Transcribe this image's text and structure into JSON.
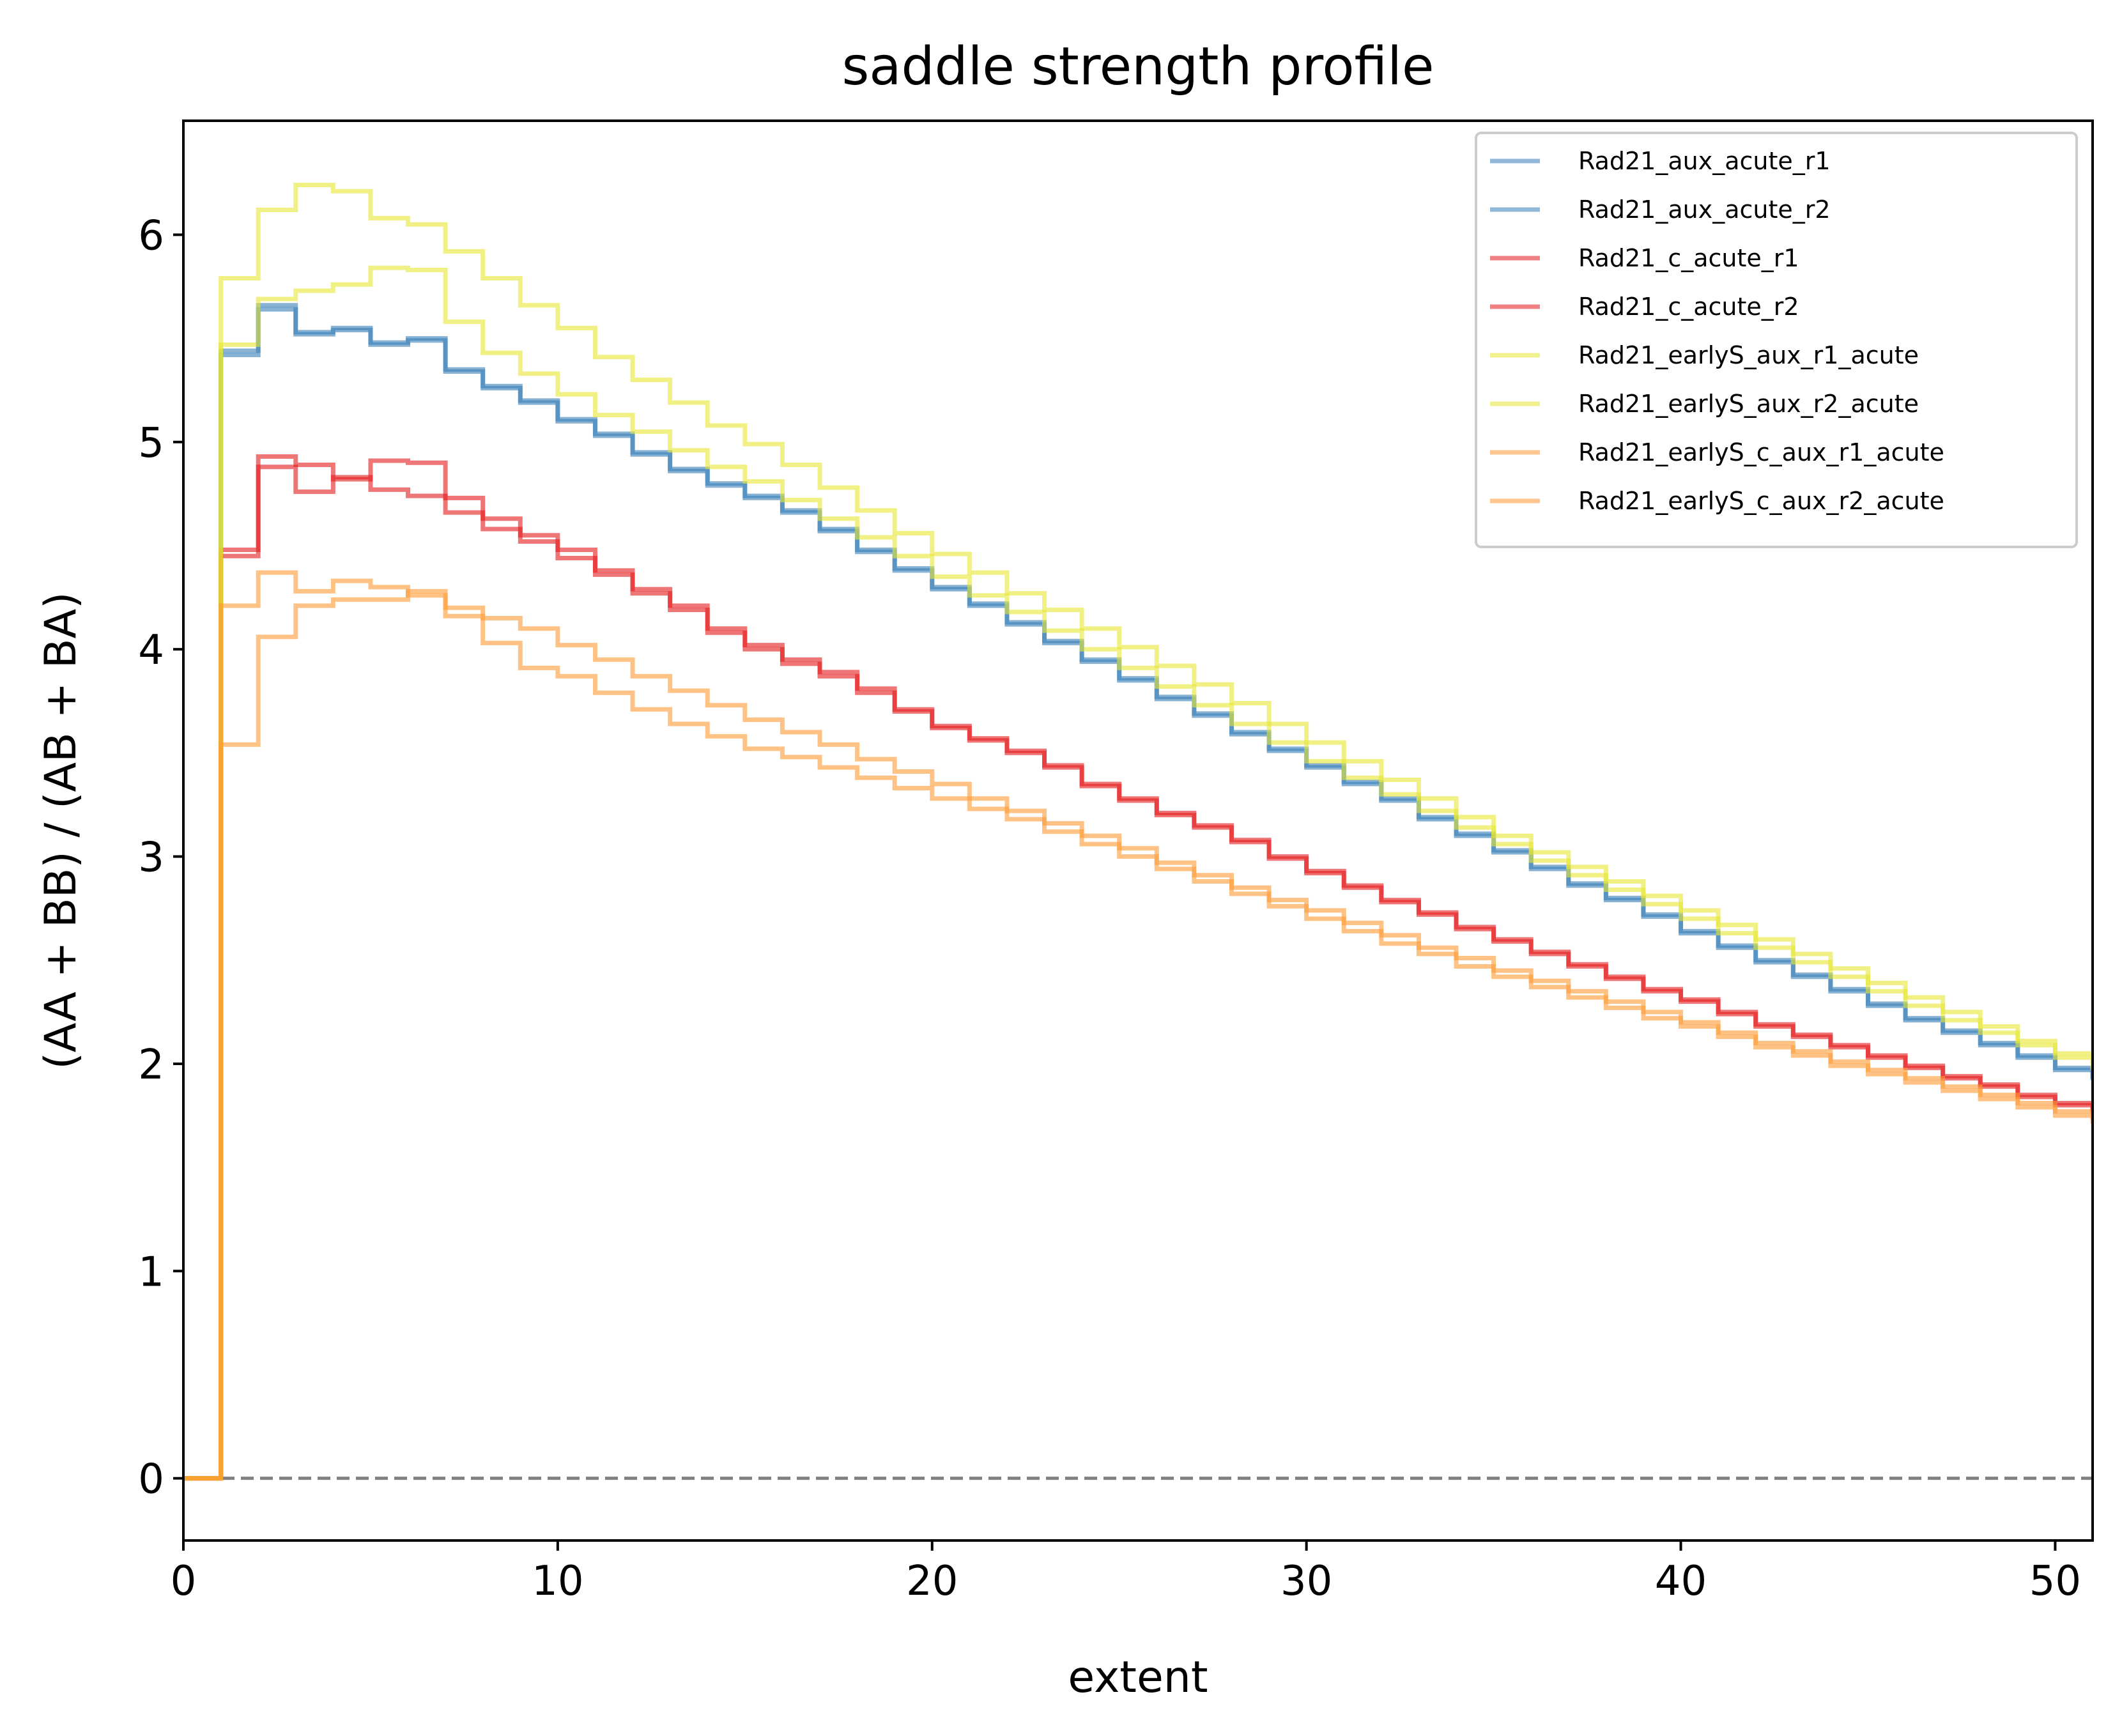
{
  "chart_data": {
    "type": "line",
    "drawstyle": "steps",
    "title": "saddle strength profile",
    "xlabel": "extent",
    "ylabel": "(AA + BB) / (AB + BA)",
    "xlim": [
      0,
      51
    ],
    "ylim": [
      -0.3,
      6.55
    ],
    "xticks": [
      0,
      10,
      20,
      30,
      40,
      50
    ],
    "yticks": [
      0,
      1,
      2,
      3,
      4,
      5,
      6
    ],
    "grid": false,
    "legend_position": "upper right",
    "reference_line": {
      "y": 0,
      "style": "dashed",
      "color": "#808080"
    },
    "x": [
      0,
      1,
      2,
      3,
      4,
      5,
      6,
      7,
      8,
      9,
      10,
      11,
      12,
      13,
      14,
      15,
      16,
      17,
      18,
      19,
      20,
      21,
      22,
      23,
      24,
      25,
      26,
      27,
      28,
      29,
      30,
      31,
      32,
      33,
      34,
      35,
      36,
      37,
      38,
      39,
      40,
      41,
      42,
      43,
      44,
      45,
      46,
      47,
      48,
      49,
      50,
      51
    ],
    "series": [
      {
        "name": "Rad21_aux_acute_r1",
        "color": "#377eb8",
        "values": [
          0,
          5.44,
          5.66,
          5.53,
          5.55,
          5.48,
          5.5,
          5.35,
          5.27,
          5.2,
          5.11,
          5.04,
          4.95,
          4.87,
          4.8,
          4.74,
          4.67,
          4.58,
          4.48,
          4.39,
          4.3,
          4.22,
          4.13,
          4.04,
          3.95,
          3.86,
          3.77,
          3.69,
          3.6,
          3.52,
          3.44,
          3.36,
          3.28,
          3.19,
          3.11,
          3.03,
          2.95,
          2.87,
          2.8,
          2.72,
          2.64,
          2.57,
          2.5,
          2.43,
          2.36,
          2.29,
          2.22,
          2.16,
          2.1,
          2.04,
          1.98,
          1.93
        ]
      },
      {
        "name": "Rad21_aux_acute_r2",
        "color": "#377eb8",
        "values": [
          0,
          5.42,
          5.64,
          5.52,
          5.54,
          5.47,
          5.49,
          5.34,
          5.26,
          5.19,
          5.1,
          5.03,
          4.94,
          4.86,
          4.79,
          4.73,
          4.66,
          4.57,
          4.47,
          4.38,
          4.29,
          4.21,
          4.12,
          4.03,
          3.94,
          3.85,
          3.76,
          3.68,
          3.59,
          3.51,
          3.43,
          3.35,
          3.27,
          3.18,
          3.1,
          3.02,
          2.94,
          2.86,
          2.79,
          2.71,
          2.63,
          2.56,
          2.49,
          2.42,
          2.35,
          2.28,
          2.21,
          2.15,
          2.09,
          2.03,
          1.97,
          1.92
        ]
      },
      {
        "name": "Rad21_c_acute_r1",
        "color": "#e41a1c",
        "values": [
          0,
          4.48,
          4.93,
          4.89,
          4.82,
          4.91,
          4.9,
          4.73,
          4.63,
          4.55,
          4.48,
          4.38,
          4.29,
          4.21,
          4.1,
          4.02,
          3.95,
          3.89,
          3.81,
          3.71,
          3.63,
          3.57,
          3.51,
          3.44,
          3.35,
          3.28,
          3.21,
          3.15,
          3.08,
          3.0,
          2.93,
          2.86,
          2.79,
          2.73,
          2.66,
          2.6,
          2.54,
          2.48,
          2.42,
          2.36,
          2.31,
          2.25,
          2.19,
          2.14,
          2.09,
          2.04,
          1.99,
          1.94,
          1.9,
          1.85,
          1.81,
          1.77
        ]
      },
      {
        "name": "Rad21_c_acute_r2",
        "color": "#e41a1c",
        "values": [
          0,
          4.45,
          4.88,
          4.76,
          4.83,
          4.77,
          4.74,
          4.66,
          4.58,
          4.52,
          4.44,
          4.36,
          4.27,
          4.19,
          4.08,
          4.0,
          3.93,
          3.87,
          3.79,
          3.7,
          3.62,
          3.56,
          3.5,
          3.43,
          3.34,
          3.27,
          3.2,
          3.14,
          3.07,
          2.99,
          2.92,
          2.85,
          2.78,
          2.72,
          2.65,
          2.59,
          2.53,
          2.47,
          2.41,
          2.35,
          2.3,
          2.24,
          2.18,
          2.13,
          2.08,
          2.03,
          1.98,
          1.93,
          1.89,
          1.84,
          1.8,
          1.76
        ]
      },
      {
        "name": "Rad21_earlyS_aux_r1_acute",
        "color": "#e6e633",
        "values": [
          0,
          5.79,
          6.12,
          6.24,
          6.21,
          6.08,
          6.05,
          5.92,
          5.79,
          5.66,
          5.55,
          5.41,
          5.3,
          5.19,
          5.08,
          4.99,
          4.89,
          4.78,
          4.67,
          4.56,
          4.46,
          4.37,
          4.27,
          4.19,
          4.1,
          4.01,
          3.92,
          3.83,
          3.74,
          3.64,
          3.55,
          3.46,
          3.37,
          3.28,
          3.19,
          3.1,
          3.02,
          2.95,
          2.88,
          2.81,
          2.74,
          2.67,
          2.6,
          2.53,
          2.46,
          2.39,
          2.32,
          2.25,
          2.18,
          2.11,
          2.05,
          2.0
        ]
      },
      {
        "name": "Rad21_earlyS_aux_r2_acute",
        "color": "#e6e633",
        "values": [
          0,
          5.47,
          5.69,
          5.73,
          5.76,
          5.84,
          5.83,
          5.58,
          5.43,
          5.33,
          5.23,
          5.13,
          5.05,
          4.96,
          4.88,
          4.81,
          4.72,
          4.63,
          4.54,
          4.45,
          4.35,
          4.26,
          4.18,
          4.09,
          4.0,
          3.91,
          3.82,
          3.73,
          3.64,
          3.55,
          3.46,
          3.38,
          3.3,
          3.22,
          3.14,
          3.06,
          2.98,
          2.91,
          2.84,
          2.77,
          2.7,
          2.63,
          2.56,
          2.49,
          2.42,
          2.35,
          2.28,
          2.21,
          2.15,
          2.09,
          2.03,
          1.97
        ]
      },
      {
        "name": "Rad21_earlyS_c_aux_r1_acute",
        "color": "#ff9933",
        "values": [
          0,
          4.21,
          4.37,
          4.28,
          4.33,
          4.3,
          4.26,
          4.2,
          4.15,
          4.1,
          4.02,
          3.95,
          3.87,
          3.8,
          3.73,
          3.66,
          3.6,
          3.54,
          3.47,
          3.41,
          3.35,
          3.28,
          3.22,
          3.16,
          3.1,
          3.04,
          2.97,
          2.91,
          2.85,
          2.79,
          2.74,
          2.68,
          2.62,
          2.56,
          2.51,
          2.45,
          2.4,
          2.35,
          2.3,
          2.25,
          2.2,
          2.15,
          2.1,
          2.06,
          2.01,
          1.97,
          1.93,
          1.89,
          1.85,
          1.81,
          1.77,
          1.73
        ]
      },
      {
        "name": "Rad21_earlyS_c_aux_r2_acute",
        "color": "#ff9933",
        "values": [
          0,
          3.54,
          4.06,
          4.21,
          4.24,
          4.24,
          4.28,
          4.16,
          4.03,
          3.91,
          3.87,
          3.79,
          3.71,
          3.64,
          3.58,
          3.52,
          3.48,
          3.43,
          3.38,
          3.33,
          3.28,
          3.23,
          3.18,
          3.12,
          3.06,
          3.0,
          2.94,
          2.88,
          2.82,
          2.76,
          2.7,
          2.64,
          2.58,
          2.53,
          2.47,
          2.42,
          2.37,
          2.32,
          2.27,
          2.22,
          2.18,
          2.13,
          2.08,
          2.04,
          1.99,
          1.95,
          1.91,
          1.87,
          1.83,
          1.79,
          1.75,
          1.71
        ]
      }
    ]
  }
}
